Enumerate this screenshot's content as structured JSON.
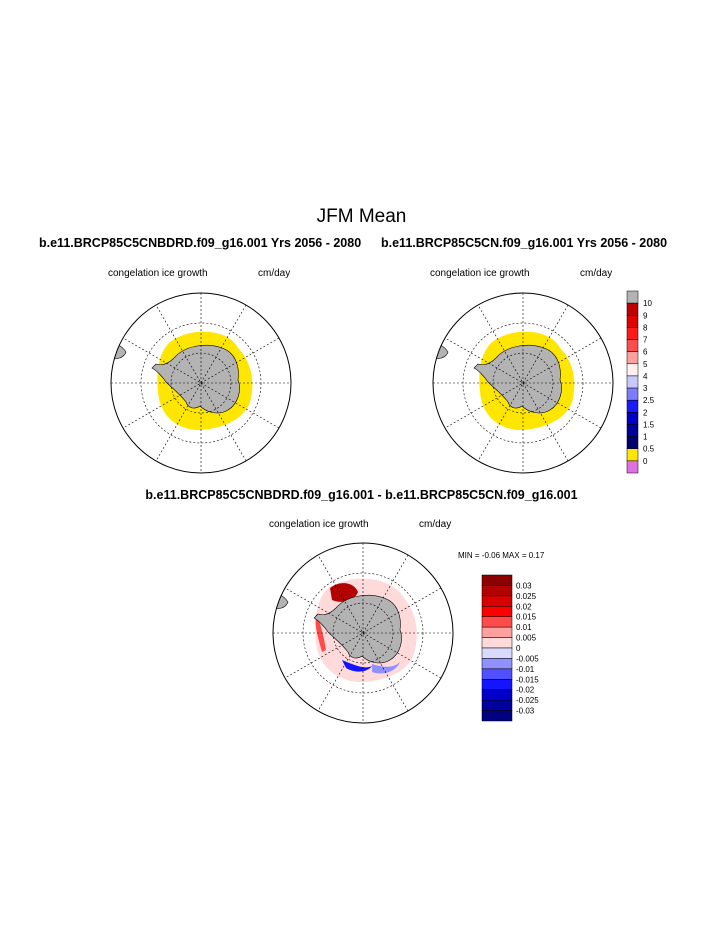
{
  "main_title": "JFM Mean",
  "panels": {
    "left": {
      "title": "b.e11.BRCP85C5CNBDRD.f09_g16.001  Yrs 2056 - 2080",
      "variable": "congelation ice growth",
      "units": "cm/day"
    },
    "right": {
      "title": "b.e11.BRCP85C5CN.f09_g16.001  Yrs 2056 - 2080",
      "variable": "congelation ice growth",
      "units": "cm/day"
    },
    "diff": {
      "title": "b.e11.BRCP85C5CNBDRD.f09_g16.001 - b.e11.BRCP85C5CN.f09_g16.001",
      "variable": "congelation ice growth",
      "units": "cm/day",
      "min_label": "MIN =",
      "min_value": "-0.06",
      "max_label": "MAX =",
      "max_value": "0.17"
    }
  },
  "colorbar_main": {
    "labels": [
      "10",
      "9",
      "8",
      "7",
      "6",
      "5",
      "4",
      "3",
      "2.5",
      "2",
      "1.5",
      "1",
      "0.5",
      "0"
    ],
    "colors": [
      "#b3b3b3",
      "#c00000",
      "#e00000",
      "#ff1a1a",
      "#ff4d4d",
      "#ff9e9e",
      "#fff0f0",
      "#c8c8ff",
      "#7c7cff",
      "#1a1aff",
      "#0000c8",
      "#0000a0",
      "#00006e",
      "#ffe600",
      "#e070e0"
    ]
  },
  "colorbar_diff": {
    "labels": [
      "0.03",
      "0.025",
      "0.02",
      "0.015",
      "0.01",
      "0.005",
      "0",
      "-0.005",
      "-0.01",
      "-0.015",
      "-0.02",
      "-0.025",
      "-0.03"
    ],
    "colors": [
      "#8b0000",
      "#b30000",
      "#d90000",
      "#ff0000",
      "#ff4a4a",
      "#ffa0a0",
      "#ffdada",
      "#dadaff",
      "#9090ff",
      "#5050ff",
      "#1414ff",
      "#0000c8",
      "#0000a0",
      "#000080"
    ]
  }
}
